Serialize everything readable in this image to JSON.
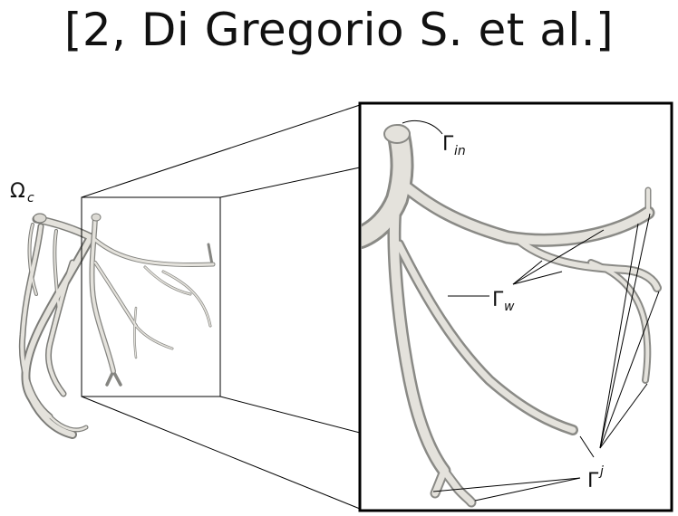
{
  "title": "[2, Di Gregorio S. et al.]",
  "labels": {
    "omega_main": "Ω",
    "omega_sub": "c",
    "gamma_in_main": "Γ",
    "gamma_in_sub": "in",
    "gamma_w_main": "Γ",
    "gamma_w_sub": "w",
    "gamma_j_main": "Γ",
    "gamma_j_sup": "j"
  },
  "colors": {
    "vessel_fill": "#e4e2dc",
    "vessel_stroke": "#8a8a86",
    "vessel_shadow": "#6f6f6b",
    "frame": "#000000"
  }
}
